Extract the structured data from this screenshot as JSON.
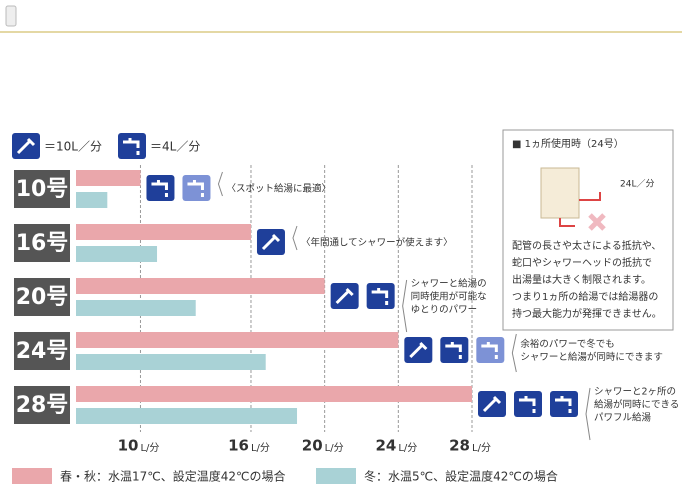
{
  "chart_data": {
    "type": "bar",
    "orientation": "horizontal",
    "categories": [
      "10号",
      "16号",
      "20号",
      "24号",
      "28号"
    ],
    "series": [
      {
        "name": "春・秋：水温17℃、設定温度42℃の場合",
        "color": "#eaa7ab",
        "values": [
          10,
          16,
          20,
          24,
          28
        ]
      },
      {
        "name": "冬：水温5℃、設定温度42℃の場合",
        "color": "#a9d2d6",
        "values": [
          8.2,
          10.9,
          13,
          16.8,
          18.5
        ]
      }
    ],
    "xlim": [
      6.5,
      28
    ],
    "xticks": [
      10,
      16,
      20,
      24,
      28
    ],
    "x_unit": "L/分",
    "grid": true,
    "icon_legend": [
      "＝10L／分",
      "＝4L／分"
    ],
    "annotations": [
      [
        "〈スポット給湯に最適〉"
      ],
      [
        "〈年間通してシャワーが使えます〉"
      ],
      [
        "シャワーと給湯の",
        "同時使用が可能な",
        "ゆとりのパワー"
      ],
      [
        "余裕のパワーで冬でも",
        "シャワーと給湯が同時にできます"
      ],
      [
        "シャワーと2ヶ所の",
        "給湯が同時にできる",
        "パワフル給湯"
      ]
    ],
    "note": {
      "title": "■ 1ヵ所使用時（24号）",
      "flow": "24L／分",
      "lines": [
        "配管の長さや太さによる抵抗や、",
        "蛇口やシャワーヘッドの抵抗で",
        "出湯量は大きく制限されます。",
        "つまり1ヵ所の給湯では給湯器の",
        "持つ最大能力が発揮できません。"
      ]
    }
  }
}
